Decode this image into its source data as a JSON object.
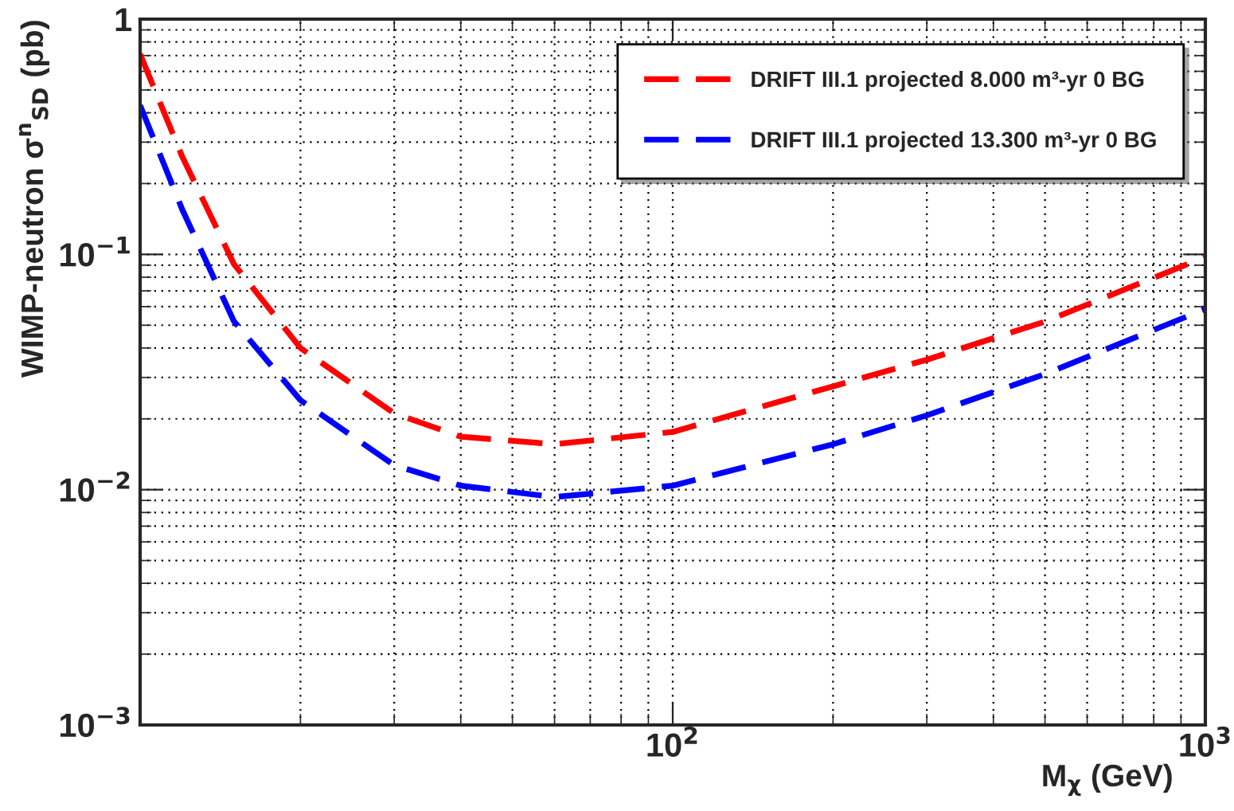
{
  "chart_data": {
    "type": "line",
    "xlabel": "M$_{χ}$ (GeV)",
    "ylabel": "WIMP-neutron σ$^{n}$$_{SD}$ (pb)",
    "x": [
      10,
      12,
      15,
      20,
      30,
      40,
      60,
      100,
      200,
      300,
      500,
      1000
    ],
    "series": [
      {
        "name": "DRIFT III.1 projected 8.000 m³-yr 0 BG",
        "color": "#ff0000",
        "values": [
          0.71,
          0.26,
          0.091,
          0.04,
          0.0211,
          0.0168,
          0.0156,
          0.0176,
          0.0275,
          0.0357,
          0.0518,
          0.0975
        ]
      },
      {
        "name": "DRIFT III.1 projected 13.300 m³-yr 0 BG",
        "color": "#0000ff",
        "values": [
          0.43,
          0.155,
          0.052,
          0.024,
          0.0127,
          0.0104,
          0.0093,
          0.0104,
          0.0156,
          0.0207,
          0.031,
          0.0586
        ]
      }
    ],
    "log": "xy",
    "xlim": [
      10,
      1000
    ],
    "ylim": [
      0.001,
      1
    ],
    "xticks": [
      {
        "value": 100,
        "label": "10$^{2}$"
      },
      {
        "value": 1000,
        "label": "10$^{3}$"
      }
    ],
    "yticks": [
      {
        "value": 0.001,
        "label": "10$^{−3}$"
      },
      {
        "value": 0.01,
        "label": "10$^{−2}$"
      },
      {
        "value": 0.1,
        "label": "10$^{−1}$"
      },
      1
    ],
    "grid": true,
    "legend": "top right",
    "line_style": "dashed"
  }
}
